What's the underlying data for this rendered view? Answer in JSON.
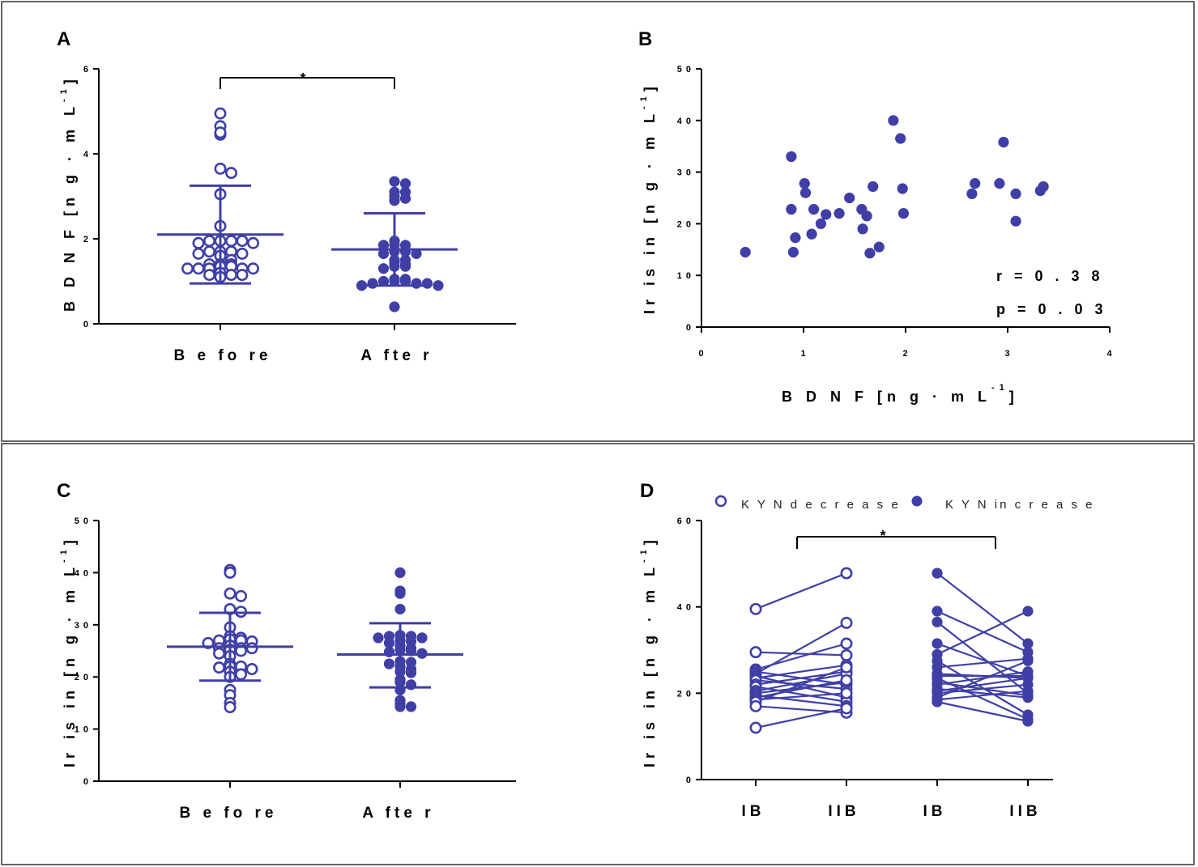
{
  "colors": {
    "series": "#3f3fa6",
    "axis": "#000000",
    "frame": "#333333"
  },
  "chart_data": [
    {
      "id": "A",
      "type": "scatter",
      "panel_label": "A",
      "ylabel": "B D N F  [n g · m L",
      "ylabel_sup": "-1",
      "ylabel_close": "]",
      "ylim": [
        0,
        6
      ],
      "yticks": [
        "0",
        "2",
        "4",
        "6"
      ],
      "categories": [
        "B e fo re",
        "A fte r"
      ],
      "series": [
        {
          "name": "Before",
          "marker": "open",
          "values": [
            4.95,
            4.65,
            4.45,
            4.5,
            3.65,
            3.55,
            3.05,
            2.3,
            1.95,
            1.95,
            1.95,
            1.95,
            1.9,
            1.9,
            1.7,
            1.7,
            1.7,
            1.65,
            1.65,
            1.6,
            1.5,
            1.4,
            1.4,
            1.4,
            1.35,
            1.35,
            1.3,
            1.3,
            1.3,
            1.3,
            1.3,
            1.2,
            1.15,
            1.15,
            1.15,
            1.1
          ],
          "mean": 2.1,
          "sd_low": 0.95,
          "sd_high": 3.25
        },
        {
          "name": "After",
          "marker": "filled",
          "values": [
            3.35,
            3.3,
            3.1,
            3.1,
            3.0,
            2.95,
            2.9,
            1.95,
            1.85,
            1.85,
            1.85,
            1.7,
            1.7,
            1.65,
            1.65,
            1.5,
            1.5,
            1.45,
            1.4,
            1.35,
            1.35,
            1.3,
            1.05,
            1.05,
            1.0,
            1.0,
            1.0,
            0.95,
            0.95,
            0.95,
            0.9,
            0.9,
            0.4
          ],
          "mean": 1.75,
          "sd_low": 0.9,
          "sd_high": 2.6
        }
      ],
      "annotation": "*"
    },
    {
      "id": "B",
      "type": "scatter",
      "panel_label": "B",
      "xlabel": "B D N F  [n g  ·  m L",
      "xlabel_sup": "-1",
      "xlabel_close": "]",
      "ylabel": "Ir is in  [n g · m L",
      "ylabel_sup": "-1",
      "ylabel_close": "]",
      "xlim": [
        0,
        4
      ],
      "ylim": [
        0,
        50
      ],
      "xticks": [
        "0",
        "1",
        "2",
        "3",
        "4"
      ],
      "yticks": [
        "0",
        "1 0",
        "2 0",
        "3 0",
        "4 0",
        "5 0"
      ],
      "points": [
        [
          0.43,
          14.5
        ],
        [
          0.88,
          33.0
        ],
        [
          0.88,
          22.8
        ],
        [
          0.9,
          14.5
        ],
        [
          0.92,
          17.3
        ],
        [
          1.01,
          27.8
        ],
        [
          1.02,
          26.0
        ],
        [
          1.08,
          18.0
        ],
        [
          1.1,
          22.8
        ],
        [
          1.17,
          20.0
        ],
        [
          1.22,
          21.8
        ],
        [
          1.35,
          22.0
        ],
        [
          1.45,
          25.0
        ],
        [
          1.57,
          22.8
        ],
        [
          1.58,
          19.0
        ],
        [
          1.62,
          21.5
        ],
        [
          1.65,
          14.3
        ],
        [
          1.68,
          27.2
        ],
        [
          1.74,
          15.5
        ],
        [
          1.88,
          40.0
        ],
        [
          1.95,
          36.5
        ],
        [
          1.97,
          26.8
        ],
        [
          1.98,
          22.0
        ],
        [
          2.65,
          25.8
        ],
        [
          2.68,
          27.8
        ],
        [
          2.92,
          27.8
        ],
        [
          2.96,
          35.8
        ],
        [
          3.08,
          25.8
        ],
        [
          3.08,
          20.5
        ],
        [
          3.32,
          26.4
        ],
        [
          3.35,
          27.2
        ]
      ],
      "stats": [
        "r = 0 . 3 8",
        "p = 0 . 0 3"
      ]
    },
    {
      "id": "C",
      "type": "scatter",
      "panel_label": "C",
      "ylabel": "Ir is in  [n g · m L",
      "ylabel_sup": "-1",
      "ylabel_close": "]",
      "ylim": [
        0,
        50
      ],
      "yticks": [
        "0",
        "1 0",
        "2 0",
        "3 0",
        "4 0",
        "5 0"
      ],
      "categories": [
        "B e fo re",
        "A fte r"
      ],
      "series": [
        {
          "name": "Before",
          "marker": "open",
          "values": [
            40.5,
            40.0,
            36.0,
            35.5,
            33.0,
            32.5,
            29.5,
            27.8,
            27.5,
            27.2,
            27.0,
            27.0,
            26.8,
            26.5,
            26.0,
            25.5,
            25.5,
            25.5,
            25.2,
            25.0,
            24.5,
            24.0,
            22.5,
            22.0,
            22.0,
            21.8,
            21.5,
            21.0,
            20.5,
            20.0,
            17.5,
            16.5,
            15.0,
            14.2
          ],
          "mean": 25.8,
          "sd_low": 19.3,
          "sd_high": 32.3
        },
        {
          "name": "After",
          "marker": "filled",
          "values": [
            40.0,
            36.5,
            36.0,
            33.0,
            28.0,
            27.8,
            27.8,
            27.5,
            27.5,
            27.0,
            26.8,
            26.5,
            26.0,
            25.5,
            25.2,
            25.0,
            24.8,
            24.5,
            23.0,
            22.8,
            22.5,
            22.0,
            21.5,
            21.0,
            20.8,
            19.5,
            19.0,
            18.5,
            17.5,
            15.5,
            14.8,
            14.3,
            14.3
          ],
          "mean": 24.3,
          "sd_low": 18.0,
          "sd_high": 30.3
        }
      ]
    },
    {
      "id": "D",
      "type": "line",
      "panel_label": "D",
      "ylabel": "Ir is in  [n g · m L",
      "ylabel_sup": "-1",
      "ylabel_close": "]",
      "ylim": [
        0,
        60
      ],
      "yticks": [
        "0",
        "2 0",
        "4 0",
        "6 0"
      ],
      "categories": [
        "IB",
        "IIB",
        "IB",
        "IIB"
      ],
      "legend": [
        {
          "label": "K Y N  d e c r e a s e",
          "marker": "open"
        },
        {
          "label": "K Y N  in c r e a s e",
          "marker": "filled"
        }
      ],
      "series": [
        {
          "name": "KYN decrease",
          "marker": "open",
          "pairs": [
            [
              39.5,
              47.8
            ],
            [
              29.5,
              28.8
            ],
            [
              25.5,
              31.5
            ],
            [
              25.0,
              22.0
            ],
            [
              24.5,
              36.3
            ],
            [
              24.0,
              19.0
            ],
            [
              23.5,
              26.5
            ],
            [
              23.0,
              21.0
            ],
            [
              22.0,
              25.0
            ],
            [
              21.5,
              18.0
            ],
            [
              20.5,
              24.5
            ],
            [
              20.0,
              22.5
            ],
            [
              19.5,
              17.0
            ],
            [
              19.0,
              23.0
            ],
            [
              18.5,
              20.0
            ],
            [
              18.0,
              26.0
            ],
            [
              17.0,
              15.5
            ],
            [
              12.0,
              16.5
            ]
          ]
        },
        {
          "name": "KYN increase",
          "marker": "filled",
          "pairs": [
            [
              47.8,
              31.5
            ],
            [
              39.0,
              29.5
            ],
            [
              36.5,
              20.0
            ],
            [
              31.5,
              24.0
            ],
            [
              29.0,
              39.0
            ],
            [
              27.5,
              15.0
            ],
            [
              26.0,
              28.0
            ],
            [
              24.5,
              23.5
            ],
            [
              24.0,
              24.0
            ],
            [
              23.5,
              14.0
            ],
            [
              22.5,
              19.5
            ],
            [
              22.0,
              25.0
            ],
            [
              21.0,
              19.0
            ],
            [
              20.5,
              23.5
            ],
            [
              20.0,
              22.0
            ],
            [
              19.0,
              27.5
            ],
            [
              18.5,
              20.5
            ],
            [
              18.0,
              13.5
            ]
          ]
        }
      ],
      "annotation": "*"
    }
  ]
}
